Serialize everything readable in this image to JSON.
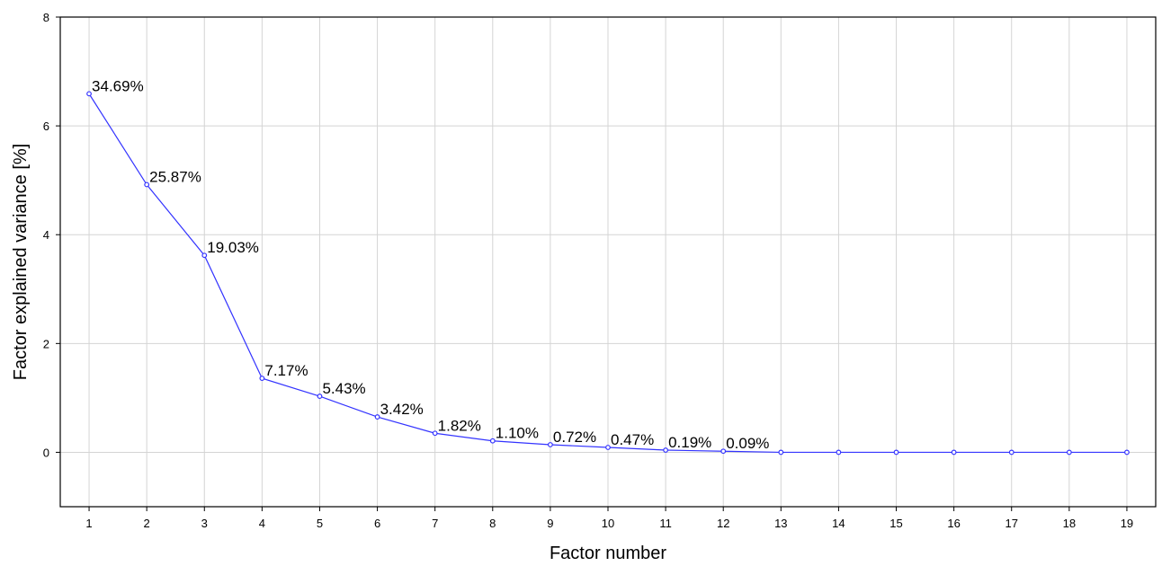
{
  "chart_data": {
    "type": "line",
    "xlabel": "Factor number",
    "ylabel": "Factor explained variance [%]",
    "xlim": [
      0.5,
      19.5
    ],
    "ylim": [
      -1,
      8
    ],
    "x_ticks": [
      "1",
      "2",
      "3",
      "4",
      "5",
      "6",
      "7",
      "8",
      "9",
      "10",
      "11",
      "12",
      "13",
      "14",
      "15",
      "16",
      "17",
      "18",
      "19"
    ],
    "y_ticks": [
      "0",
      "2",
      "4",
      "6",
      "8"
    ],
    "grid": true,
    "series": [
      {
        "color": "#3333ff",
        "x": [
          1,
          2,
          3,
          4,
          5,
          6,
          7,
          8,
          9,
          10,
          11,
          12,
          13,
          14,
          15,
          16,
          17,
          18,
          19
        ],
        "y": [
          6.59,
          4.92,
          3.62,
          1.36,
          1.03,
          0.65,
          0.35,
          0.21,
          0.14,
          0.09,
          0.04,
          0.02,
          0.0,
          0.0,
          0.0,
          0.0,
          0.0,
          0.0,
          0.0
        ],
        "labels": [
          "34.69%",
          "25.87%",
          "19.03%",
          "7.17%",
          "5.43%",
          "3.42%",
          "1.82%",
          "1.10%",
          "0.72%",
          "0.47%",
          "0.19%",
          "0.09%",
          "",
          "",
          "",
          "",
          "",
          "",
          ""
        ]
      }
    ]
  }
}
